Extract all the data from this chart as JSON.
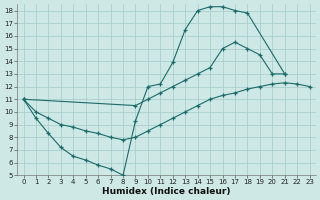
{
  "xlabel": "Humidex (Indice chaleur)",
  "bg_color": "#cde8e5",
  "grid_color": "#aacfcc",
  "line_color": "#1a6b6b",
  "xlim": [
    -0.5,
    23.5
  ],
  "ylim": [
    5,
    18.5
  ],
  "xticks": [
    0,
    1,
    2,
    3,
    4,
    5,
    6,
    7,
    8,
    9,
    10,
    11,
    12,
    13,
    14,
    15,
    16,
    17,
    18,
    19,
    20,
    21,
    22,
    23
  ],
  "yticks": [
    5,
    6,
    7,
    8,
    9,
    10,
    11,
    12,
    13,
    14,
    15,
    16,
    17,
    18
  ],
  "line1_x": [
    0,
    1,
    2,
    3,
    4,
    5,
    6,
    7,
    8,
    9,
    10,
    11,
    12,
    13,
    14,
    15,
    16,
    17,
    18,
    21
  ],
  "line1_y": [
    11,
    9.5,
    8.3,
    7.2,
    6.5,
    6.2,
    5.8,
    5.5,
    5.0,
    9.3,
    12.0,
    12.2,
    13.9,
    16.5,
    18.0,
    18.3,
    18.3,
    18.0,
    17.8,
    13.0
  ],
  "line2_x": [
    0,
    9,
    10,
    11,
    12,
    13,
    14,
    15,
    16,
    17,
    18,
    19,
    20,
    21
  ],
  "line2_y": [
    11,
    10.5,
    11.0,
    11.5,
    12.0,
    12.5,
    13.0,
    13.5,
    15.0,
    15.5,
    15.0,
    14.5,
    13.0,
    13.0
  ],
  "line3_x": [
    0,
    1,
    2,
    3,
    4,
    5,
    6,
    7,
    8,
    9,
    10,
    11,
    12,
    13,
    14,
    15,
    16,
    17,
    18,
    19,
    20,
    21,
    22,
    23
  ],
  "line3_y": [
    11,
    10.0,
    9.5,
    9.0,
    8.8,
    8.5,
    8.3,
    8.0,
    7.8,
    8.0,
    8.5,
    9.0,
    9.5,
    10.0,
    10.5,
    11.0,
    11.3,
    11.5,
    11.8,
    12.0,
    12.2,
    12.3,
    12.2,
    12.0
  ]
}
